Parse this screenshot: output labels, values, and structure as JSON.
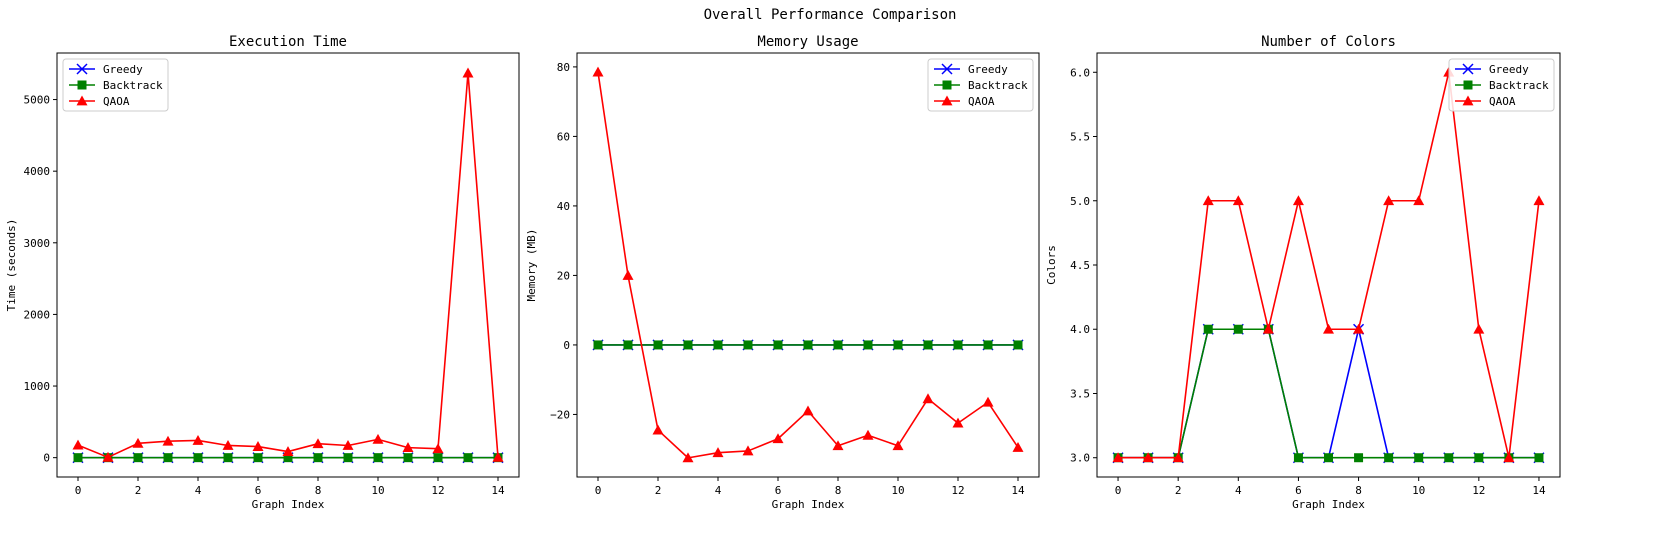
{
  "suptitle": "Overall Performance Comparison",
  "legend_labels": [
    "Greedy",
    "Backtrack",
    "QAOA"
  ],
  "colors": {
    "Greedy": "#0000ff",
    "Backtrack": "#008000",
    "QAOA": "#ff0000"
  },
  "chart_data": [
    {
      "type": "line",
      "title": "Execution Time",
      "xlabel": "Graph Index",
      "ylabel": "Time (seconds)",
      "x": [
        0,
        1,
        2,
        3,
        4,
        5,
        6,
        7,
        8,
        9,
        10,
        11,
        12,
        13,
        14
      ],
      "xticks": [
        0,
        2,
        4,
        6,
        8,
        10,
        12,
        14
      ],
      "xlim": [
        -0.7,
        14.7
      ],
      "yticks": [
        0,
        1000,
        2000,
        3000,
        4000,
        5000
      ],
      "ytick_labels": [
        "0",
        "1000",
        "2000",
        "3000",
        "4000",
        "5000"
      ],
      "ylim": [
        -270,
        5650
      ],
      "legend_loc": "upper-left",
      "series": [
        {
          "name": "Greedy",
          "marker": "x",
          "values": [
            0,
            0,
            0,
            0,
            0,
            0,
            0,
            0,
            0,
            0,
            0,
            0,
            0,
            0,
            0
          ]
        },
        {
          "name": "Backtrack",
          "marker": "square",
          "values": [
            0,
            0,
            0,
            0,
            0,
            0,
            0,
            0,
            0,
            0,
            0,
            0,
            0,
            0,
            0
          ]
        },
        {
          "name": "QAOA",
          "marker": "triangle",
          "values": [
            175,
            5,
            200,
            230,
            240,
            170,
            155,
            85,
            195,
            170,
            255,
            140,
            125,
            5370,
            5
          ]
        }
      ]
    },
    {
      "type": "line",
      "title": "Memory Usage",
      "xlabel": "Graph Index",
      "ylabel": "Memory (MB)",
      "x": [
        0,
        1,
        2,
        3,
        4,
        5,
        6,
        7,
        8,
        9,
        10,
        11,
        12,
        13,
        14
      ],
      "xticks": [
        0,
        2,
        4,
        6,
        8,
        10,
        12,
        14
      ],
      "xlim": [
        -0.7,
        14.7
      ],
      "yticks": [
        -20,
        0,
        20,
        40,
        60,
        80
      ],
      "ytick_labels": [
        "−20",
        "0",
        "20",
        "40",
        "60",
        "80"
      ],
      "ylim": [
        -38,
        84
      ],
      "legend_loc": "upper-right",
      "series": [
        {
          "name": "Greedy",
          "marker": "x",
          "values": [
            0,
            0,
            0,
            0,
            0,
            0,
            0,
            0,
            0,
            0,
            0,
            0,
            0,
            0,
            0
          ]
        },
        {
          "name": "Backtrack",
          "marker": "square",
          "values": [
            0,
            0,
            0,
            0,
            0,
            0,
            0,
            0,
            0,
            0,
            0,
            0,
            0,
            0,
            0
          ]
        },
        {
          "name": "QAOA",
          "marker": "triangle",
          "values": [
            78.5,
            20,
            -24.5,
            -32.5,
            -31,
            -30.5,
            -27,
            -19,
            -29,
            -26,
            -29,
            -15.5,
            -22.5,
            -16.5,
            -29.5
          ]
        }
      ]
    },
    {
      "type": "line",
      "title": "Number of Colors",
      "xlabel": "Graph Index",
      "ylabel": "Colors",
      "x": [
        0,
        1,
        2,
        3,
        4,
        5,
        6,
        7,
        8,
        9,
        10,
        11,
        12,
        13,
        14
      ],
      "xticks": [
        0,
        2,
        4,
        6,
        8,
        10,
        12,
        14
      ],
      "xlim": [
        -0.7,
        14.7
      ],
      "yticks": [
        3.0,
        3.5,
        4.0,
        4.5,
        5.0,
        5.5,
        6.0
      ],
      "ytick_labels": [
        "3.0",
        "3.5",
        "4.0",
        "4.5",
        "5.0",
        "5.5",
        "6.0"
      ],
      "ylim": [
        2.85,
        6.15
      ],
      "legend_loc": "upper-right",
      "series": [
        {
          "name": "Greedy",
          "marker": "x",
          "values": [
            3,
            3,
            3,
            4,
            4,
            4,
            3,
            3,
            4,
            3,
            3,
            3,
            3,
            3,
            3
          ]
        },
        {
          "name": "Backtrack",
          "marker": "square",
          "values": [
            3,
            3,
            3,
            4,
            4,
            4,
            3,
            3,
            3,
            3,
            3,
            3,
            3,
            3,
            3
          ]
        },
        {
          "name": "QAOA",
          "marker": "triangle",
          "values": [
            3,
            3,
            3,
            5,
            5,
            4,
            5,
            4,
            4,
            5,
            5,
            6,
            4,
            3,
            5
          ]
        }
      ]
    }
  ]
}
